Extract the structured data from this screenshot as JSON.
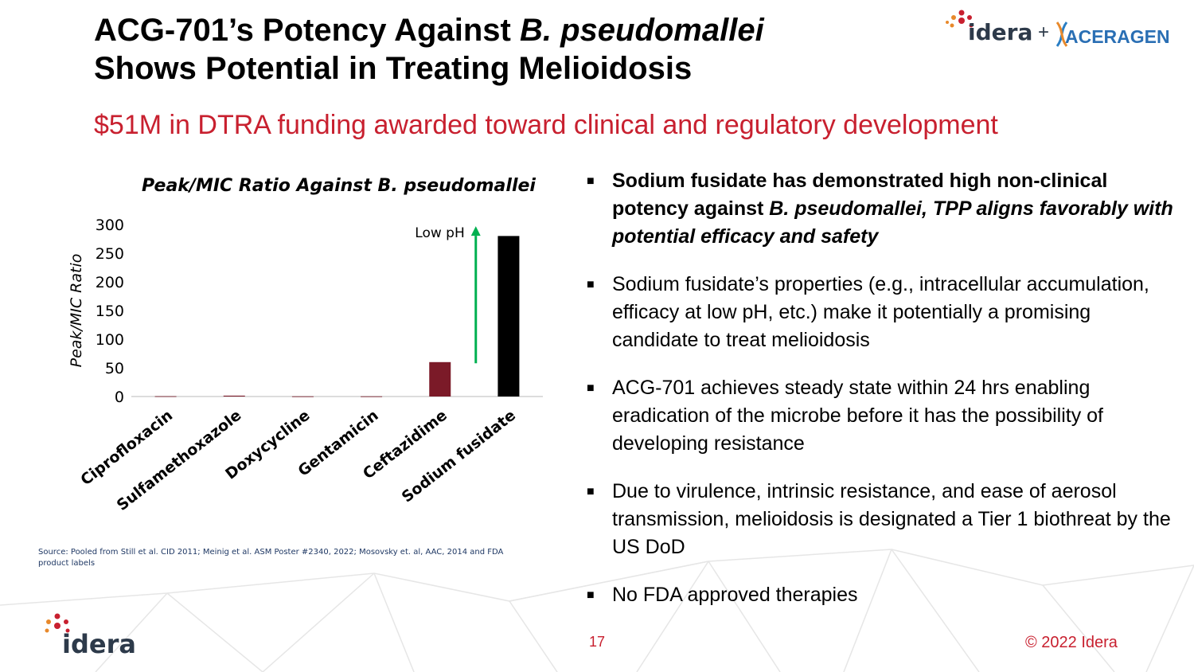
{
  "title": {
    "line1_prefix": "ACG-701’s Potency Against ",
    "line1_italic": "B. pseudomallei",
    "line2": "Shows Potential in Treating Melioidosis"
  },
  "subtitle": "$51M in DTRA funding awarded toward clinical and regulatory development",
  "logos": {
    "top_left_word": "idera",
    "plus": "+",
    "top_right_word": "ACERAGEN",
    "bottom_word": "idera"
  },
  "chart_data": {
    "type": "bar",
    "title": "Peak/MIC Ratio Against B. pseudomallei",
    "ylabel": "Peak/MIC Ratio",
    "xlabel": "",
    "ylim": [
      0,
      300
    ],
    "yticks": [
      0,
      50,
      100,
      150,
      200,
      250,
      300
    ],
    "categories": [
      "Ciprofloxacin",
      "Sulfamethoxazole",
      "Doxycycline",
      "Gentamicin",
      "Ceftazidime",
      "Sodium fusidate"
    ],
    "values": [
      0.5,
      1.5,
      0.3,
      0.3,
      60,
      280
    ],
    "bar_colors": [
      "#7b1a28",
      "#7b1a28",
      "#7b1a28",
      "#7b1a28",
      "#7b1a28",
      "#000000"
    ],
    "annotation": {
      "text": "Low pH",
      "arrow_color": "#00b050"
    },
    "grid": false
  },
  "source_text": "Source: Pooled from Still et al. CID 2011; Meinig et al. ASM Poster #2340, 2022; Mosovsky et. al,  AAC, 2014 and FDA product labels",
  "bullet_marker": "■",
  "bullets": {
    "b1": {
      "part1": "Sodium fusidate has demonstrated high non-clinical potency against ",
      "italic": "B. pseudomallei, TPP aligns favorably with potential efficacy and safety"
    },
    "b2": "Sodium fusidate’s properties (e.g., intracellular accumulation, efficacy at low pH, etc.) make it potentially a promising candidate to treat melioidosis",
    "b3": "ACG-701 achieves steady state within 24 hrs enabling eradication of the microbe before it has the possibility of developing resistance",
    "b4": "Due to virulence, intrinsic resistance, and ease of aerosol transmission, melioidosis is designated a Tier 1 biothreat by the US DoD",
    "b5": "No FDA approved therapies"
  },
  "footer": {
    "page_number": "17",
    "copyright": "© 2022 Idera"
  },
  "colors": {
    "accent_red": "#c8202f",
    "bar_red": "#7b1a28",
    "bar_black": "#000000",
    "arrow_green": "#00b050",
    "source_blue": "#1f3864"
  }
}
